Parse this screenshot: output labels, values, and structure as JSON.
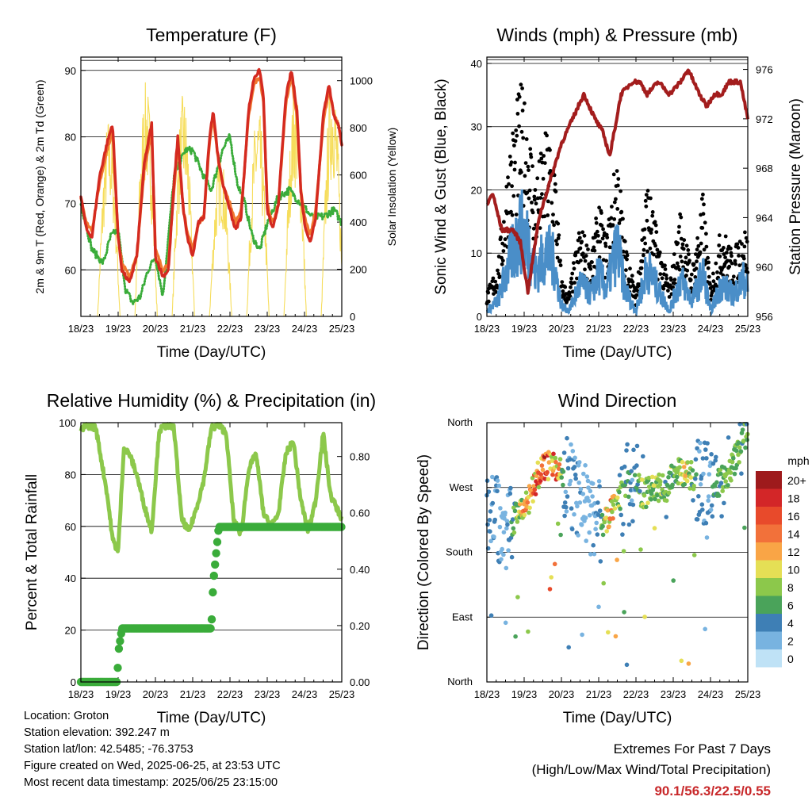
{
  "chart_data": [
    {
      "type": "line",
      "title": "Temperature (F)",
      "xlabel": "Time (Day/UTC)",
      "ylabel": "2m & 9m T (Red, Orange) & 2m Td (Green)",
      "ylabel_right": "Solar Insolation (Yellow)",
      "xticks": [
        "18/23",
        "19/23",
        "20/23",
        "21/23",
        "22/23",
        "23/23",
        "24/23",
        "25/23"
      ],
      "ylim": [
        53,
        92
      ],
      "yticks": [
        60,
        70,
        80,
        90
      ],
      "ylim_right": [
        0,
        1100
      ],
      "yticks_right": [
        0,
        200,
        400,
        600,
        800,
        1000
      ],
      "grid_y": [
        60,
        70,
        80,
        90
      ],
      "series": [
        {
          "name": "2m T",
          "color": "#d42a20",
          "x": [
            0,
            0.15,
            0.3,
            0.5,
            0.7,
            0.85,
            1,
            1.1,
            1.3,
            1.5,
            1.7,
            1.9,
            2,
            2.2,
            2.35,
            2.5,
            2.6,
            2.75,
            2.85,
            3,
            3.15,
            3.3,
            3.45,
            3.55,
            3.7,
            3.85,
            4,
            4.15,
            4.3,
            4.5,
            4.65,
            4.8,
            4.9,
            5,
            5.15,
            5.3,
            5.5,
            5.65,
            5.8,
            5.9,
            6,
            6.15,
            6.3,
            6.5,
            6.65,
            6.8,
            6.9,
            7
          ],
          "y": [
            71,
            66,
            65,
            74,
            79,
            82,
            65,
            60,
            58,
            62,
            76,
            82,
            62,
            59,
            60,
            73,
            80,
            69,
            65,
            62,
            67,
            68,
            80,
            84,
            76,
            72,
            69,
            66,
            68,
            84,
            89,
            90,
            86,
            69,
            66,
            70,
            86,
            90,
            84,
            72,
            67,
            64,
            68,
            83,
            88,
            83,
            82,
            79
          ]
        },
        {
          "name": "9m T",
          "color": "#f07830",
          "x": [
            0,
            0.15,
            0.3,
            0.5,
            0.7,
            0.85,
            1,
            1.1,
            1.3,
            1.5,
            1.7,
            1.9,
            2,
            2.2,
            2.35,
            2.5,
            2.6,
            2.75,
            2.85,
            3,
            3.15,
            3.3,
            3.45,
            3.55,
            3.7,
            3.85,
            4,
            4.15,
            4.3,
            4.5,
            4.65,
            4.8,
            4.9,
            5,
            5.15,
            5.3,
            5.5,
            5.65,
            5.8,
            5.9,
            6,
            6.15,
            6.3,
            6.5,
            6.65,
            6.8,
            6.9,
            7
          ],
          "y": [
            71,
            67,
            66,
            73,
            78,
            81,
            65,
            61,
            59,
            62,
            75,
            81,
            63,
            60,
            61,
            72,
            79,
            69,
            66,
            63,
            67,
            68,
            79,
            83,
            76,
            72,
            70,
            67,
            69,
            83,
            88,
            89,
            85,
            70,
            67,
            70,
            85,
            89,
            83,
            72,
            68,
            65,
            69,
            82,
            87,
            83,
            82,
            79
          ]
        },
        {
          "name": "2m Td",
          "color": "#3aac3a",
          "x": [
            0,
            0.3,
            0.6,
            0.8,
            1,
            1.2,
            1.4,
            1.6,
            1.8,
            2,
            2.2,
            2.5,
            2.8,
            3,
            3.3,
            3.5,
            3.8,
            4,
            4.2,
            4.4,
            4.6,
            4.8,
            5,
            5.3,
            5.6,
            5.9,
            6.2,
            6.5,
            6.8,
            7
          ],
          "y": [
            70,
            63,
            61,
            65,
            66,
            57,
            55,
            56,
            60,
            62,
            56,
            74,
            78,
            78,
            74,
            72,
            78,
            80,
            73,
            70,
            65,
            63,
            67,
            71,
            72,
            70,
            68,
            68,
            69,
            67
          ]
        },
        {
          "name": "Solar Insolation",
          "color": "#f5d94a",
          "axis": "right",
          "peaks_day_offset": [
            0.75,
            1.75,
            2.75,
            3.75,
            4.75,
            5.75,
            6.75
          ],
          "peaks": [
            850,
            1000,
            950,
            700,
            900,
            980,
            1050
          ]
        }
      ]
    },
    {
      "type": "scatter",
      "title": "Winds (mph) & Pressure (mb)",
      "xlabel": "Time (Day/UTC)",
      "ylabel": "Sonic Wind & Gust (Blue, Black)",
      "ylabel_right": "Station Pressure (Maroon)",
      "xticks": [
        "18/23",
        "19/23",
        "20/23",
        "21/23",
        "22/23",
        "23/23",
        "24/23",
        "25/23"
      ],
      "ylim": [
        0,
        41
      ],
      "yticks": [
        0,
        10,
        20,
        30,
        40
      ],
      "ylim_right": [
        956,
        977
      ],
      "yticks_right": [
        956,
        960,
        964,
        968,
        972,
        976
      ],
      "grid_y": [
        10,
        20,
        30,
        40
      ],
      "series": [
        {
          "name": "Gust",
          "color": "#000000",
          "x": [
            0,
            0.3,
            0.6,
            0.9,
            1.1,
            1.3,
            1.6,
            1.8,
            2,
            2.2,
            2.5,
            2.8,
            3,
            3.2,
            3.5,
            3.7,
            4,
            4.3,
            4.6,
            4.9,
            5.2,
            5.5,
            5.8,
            6,
            6.3,
            6.6,
            6.9,
            7
          ],
          "y": [
            3,
            7,
            22,
            30,
            26,
            18,
            24,
            22,
            5,
            3,
            12,
            8,
            15,
            10,
            22,
            10,
            3,
            18,
            10,
            4,
            14,
            6,
            16,
            4,
            12,
            8,
            12,
            10
          ]
        },
        {
          "name": "Wind",
          "color": "#4a8ec8",
          "x": [
            0,
            0.3,
            0.6,
            0.9,
            1.1,
            1.3,
            1.6,
            1.8,
            2,
            2.2,
            2.5,
            2.8,
            3,
            3.2,
            3.5,
            3.7,
            4,
            4.3,
            4.6,
            4.9,
            5.2,
            5.5,
            5.8,
            6,
            6.3,
            6.6,
            6.9,
            7
          ],
          "y": [
            1,
            3,
            10,
            16,
            14,
            8,
            12,
            10,
            2,
            1,
            6,
            4,
            8,
            5,
            13,
            5,
            1,
            9,
            5,
            1,
            7,
            3,
            8,
            1,
            6,
            4,
            7,
            5
          ]
        },
        {
          "name": "Pressure",
          "color": "#a31d1d",
          "axis": "right",
          "x": [
            0,
            0.15,
            0.4,
            0.7,
            0.9,
            1.1,
            1.4,
            1.7,
            2,
            2.3,
            2.6,
            2.9,
            3.1,
            3.3,
            3.6,
            3.9,
            4.1,
            4.3,
            4.6,
            4.9,
            5.2,
            5.4,
            5.7,
            5.9,
            6.1,
            6.3,
            6.5,
            6.8,
            7
          ],
          "y": [
            965,
            966,
            963,
            963,
            962,
            958,
            964,
            967,
            970,
            972,
            974,
            972,
            971,
            969,
            974,
            975,
            975,
            974,
            975,
            974,
            975,
            976,
            974,
            973,
            974,
            974,
            975,
            975,
            972
          ]
        }
      ]
    },
    {
      "type": "line",
      "title": "Relative Humidity (%) & Precipitation (in)",
      "xlabel": "Time (Day/UTC)",
      "ylabel": "Percent & Total Rainfall",
      "xticks": [
        "18/23",
        "19/23",
        "20/23",
        "21/23",
        "22/23",
        "23/23",
        "24/23",
        "25/23"
      ],
      "ylim": [
        0,
        100
      ],
      "yticks": [
        0,
        20,
        40,
        60,
        80,
        100
      ],
      "ylim_right": [
        0,
        0.92
      ],
      "yticks_right": [
        "0.00",
        "0.20",
        "0.40",
        "0.60",
        "0.80"
      ],
      "grid_y": [
        20,
        40,
        60,
        80
      ],
      "series": [
        {
          "name": "RH",
          "color": "#8cc84b",
          "x": [
            0,
            0.15,
            0.4,
            0.7,
            0.85,
            1,
            1.15,
            1.3,
            1.5,
            1.7,
            1.9,
            2.1,
            2.3,
            2.5,
            2.7,
            2.9,
            3.1,
            3.3,
            3.5,
            3.7,
            3.9,
            4.1,
            4.3,
            4.5,
            4.7,
            4.9,
            5.1,
            5.3,
            5.5,
            5.7,
            5.9,
            6.1,
            6.3,
            6.5,
            6.7,
            6.9,
            7
          ],
          "y": [
            97,
            99,
            98,
            73,
            55,
            50,
            90,
            88,
            80,
            68,
            58,
            97,
            99,
            98,
            63,
            58,
            67,
            78,
            98,
            99,
            96,
            62,
            57,
            82,
            88,
            65,
            60,
            65,
            88,
            93,
            70,
            58,
            70,
            96,
            72,
            66,
            63
          ]
        },
        {
          "name": "Total Rainfall",
          "color": "#3aac3a",
          "x": [
            0,
            0.98,
            1.0,
            1.1,
            3.5,
            3.55,
            3.7,
            7
          ],
          "y": [
            0,
            0,
            0.1,
            0.19,
            0.19,
            0.35,
            0.55,
            0.55
          ]
        }
      ]
    },
    {
      "type": "scatter",
      "title": "Wind Direction",
      "xlabel": "Time (Day/UTC)",
      "ylabel": "Direction (Colored By Speed)",
      "xticks": [
        "18/23",
        "19/23",
        "20/23",
        "21/23",
        "22/23",
        "23/23",
        "24/23",
        "25/23"
      ],
      "yticks": [
        "North",
        "East",
        "South",
        "West",
        "North"
      ],
      "ylim": [
        0,
        360
      ],
      "colorbar_title": "mph",
      "colorbar_labels": [
        "20+",
        "18",
        "16",
        "14",
        "12",
        "10",
        "8",
        "6",
        "4",
        "2",
        "0"
      ],
      "colorbar_colors": [
        "#9e1a1c",
        "#d32628",
        "#e84a2b",
        "#f2713a",
        "#f9a546",
        "#e5df55",
        "#8cc84b",
        "#4aa35a",
        "#3e7fb5",
        "#78b3e0",
        "#bfe2f6"
      ],
      "series": [
        {
          "name": "Direction",
          "x": [
            0.2,
            0.5,
            0.8,
            1.1,
            1.3,
            1.6,
            1.9,
            2.1,
            2.4,
            2.7,
            3.0,
            3.3,
            3.6,
            3.9,
            4.2,
            4.5,
            4.8,
            5.1,
            5.4,
            5.7,
            6.0,
            6.3,
            6.6,
            6.9
          ],
          "y": [
            240,
            200,
            230,
            250,
            280,
            300,
            300,
            290,
            260,
            240,
            220,
            230,
            260,
            280,
            260,
            270,
            270,
            290,
            290,
            280,
            270,
            280,
            300,
            340
          ],
          "speed": [
            4,
            2,
            10,
            16,
            16,
            18,
            16,
            4,
            4,
            2,
            4,
            16,
            8,
            4,
            10,
            10,
            8,
            10,
            12,
            4,
            4,
            8,
            8,
            8
          ]
        }
      ]
    }
  ],
  "footer": {
    "location": "Location: Groton",
    "elevation": "Station elevation: 392.247 m",
    "latlon": "Station lat/lon: 42.5485; -76.3753",
    "created": "Figure created on Wed, 2025-06-25, at 23:53 UTC",
    "recent": "Most recent data timestamp: 2025/06/25 23:15:00"
  },
  "extremes": {
    "title": "Extremes For Past 7 Days",
    "subtitle": "(High/Low/Max Wind/Total Precipitation)",
    "values": "90.1/56.3/22.5/0.55",
    "values_color": "#c8282a"
  }
}
